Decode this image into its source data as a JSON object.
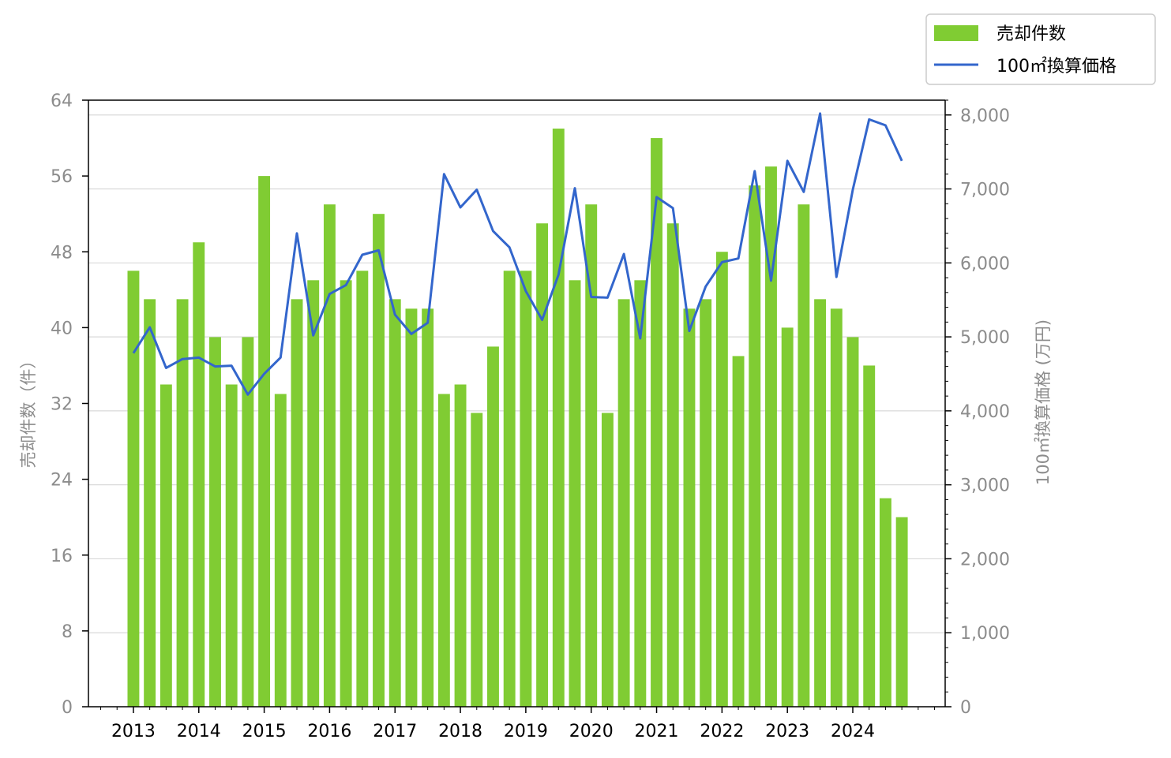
{
  "chart_data": {
    "type": "bar+line",
    "x_tick_labels": [
      "2013",
      "2014",
      "2015",
      "2016",
      "2017",
      "2018",
      "2019",
      "2020",
      "2021",
      "2022",
      "2023",
      "2024"
    ],
    "y_left": {
      "label": "売却件数（件）",
      "ylim": [
        0,
        64
      ],
      "ticks": [
        0,
        8,
        16,
        24,
        32,
        40,
        48,
        56,
        64
      ],
      "tick_labels": [
        "0",
        "8",
        "16",
        "24",
        "32",
        "40",
        "48",
        "56",
        "64"
      ]
    },
    "y_right": {
      "label": "100㎡換算価格 (万円)",
      "ylim": [
        0,
        8200
      ],
      "ticks": [
        0,
        1000,
        2000,
        3000,
        4000,
        5000,
        6000,
        7000,
        8000
      ],
      "tick_labels": [
        "0",
        "1,000",
        "2,000",
        "3,000",
        "4,000",
        "5,000",
        "6,000",
        "7,000",
        "8,000"
      ]
    },
    "grid": true,
    "legend_position": "top-right",
    "legend": {
      "bar_label": "売却件数",
      "line_label": "100㎡換算価格"
    },
    "colors": {
      "bar": "#80cc33",
      "line": "#3366cc",
      "grid": "#d9d9d9",
      "tick_text": "#8c8c8c"
    },
    "periods": [
      "2013Q1",
      "2013Q2",
      "2013Q3",
      "2013Q4",
      "2014Q1",
      "2014Q2",
      "2014Q3",
      "2014Q4",
      "2015Q1",
      "2015Q2",
      "2015Q3",
      "2015Q4",
      "2016Q1",
      "2016Q2",
      "2016Q3",
      "2016Q4",
      "2017Q1",
      "2017Q2",
      "2017Q3",
      "2017Q4",
      "2018Q1",
      "2018Q2",
      "2018Q3",
      "2018Q4",
      "2019Q1",
      "2019Q2",
      "2019Q3",
      "2019Q4",
      "2020Q1",
      "2020Q2",
      "2020Q3",
      "2020Q4",
      "2021Q1",
      "2021Q2",
      "2021Q3",
      "2021Q4",
      "2022Q1",
      "2022Q2",
      "2022Q3",
      "2022Q4",
      "2023Q1",
      "2023Q2",
      "2023Q3",
      "2023Q4",
      "2024Q1",
      "2024Q2",
      "2024Q3",
      "2024Q4"
    ],
    "series": [
      {
        "name": "売却件数",
        "kind": "bar",
        "axis": "left",
        "values": [
          46,
          43,
          34,
          43,
          49,
          39,
          34,
          39,
          56,
          33,
          43,
          45,
          53,
          45,
          46,
          52,
          43,
          42,
          42,
          33,
          34,
          31,
          38,
          46,
          46,
          51,
          61,
          45,
          53,
          31,
          43,
          45,
          60,
          51,
          42,
          43,
          48,
          37,
          55,
          57,
          40,
          53,
          43,
          42,
          39,
          36,
          22,
          20
        ]
      },
      {
        "name": "100㎡換算価格",
        "kind": "line",
        "axis": "right",
        "values": [
          4780,
          5130,
          4580,
          4700,
          4720,
          4600,
          4610,
          4220,
          4500,
          4720,
          6400,
          5020,
          5580,
          5700,
          6110,
          6170,
          5300,
          5040,
          5190,
          7200,
          6750,
          6990,
          6430,
          6210,
          5620,
          5230,
          5840,
          7010,
          5540,
          5530,
          6120,
          4980,
          6890,
          6740,
          5080,
          5680,
          6010,
          6060,
          7240,
          5760,
          7380,
          6960,
          8020,
          5810,
          6990,
          7940,
          7860,
          7380
        ]
      }
    ]
  }
}
